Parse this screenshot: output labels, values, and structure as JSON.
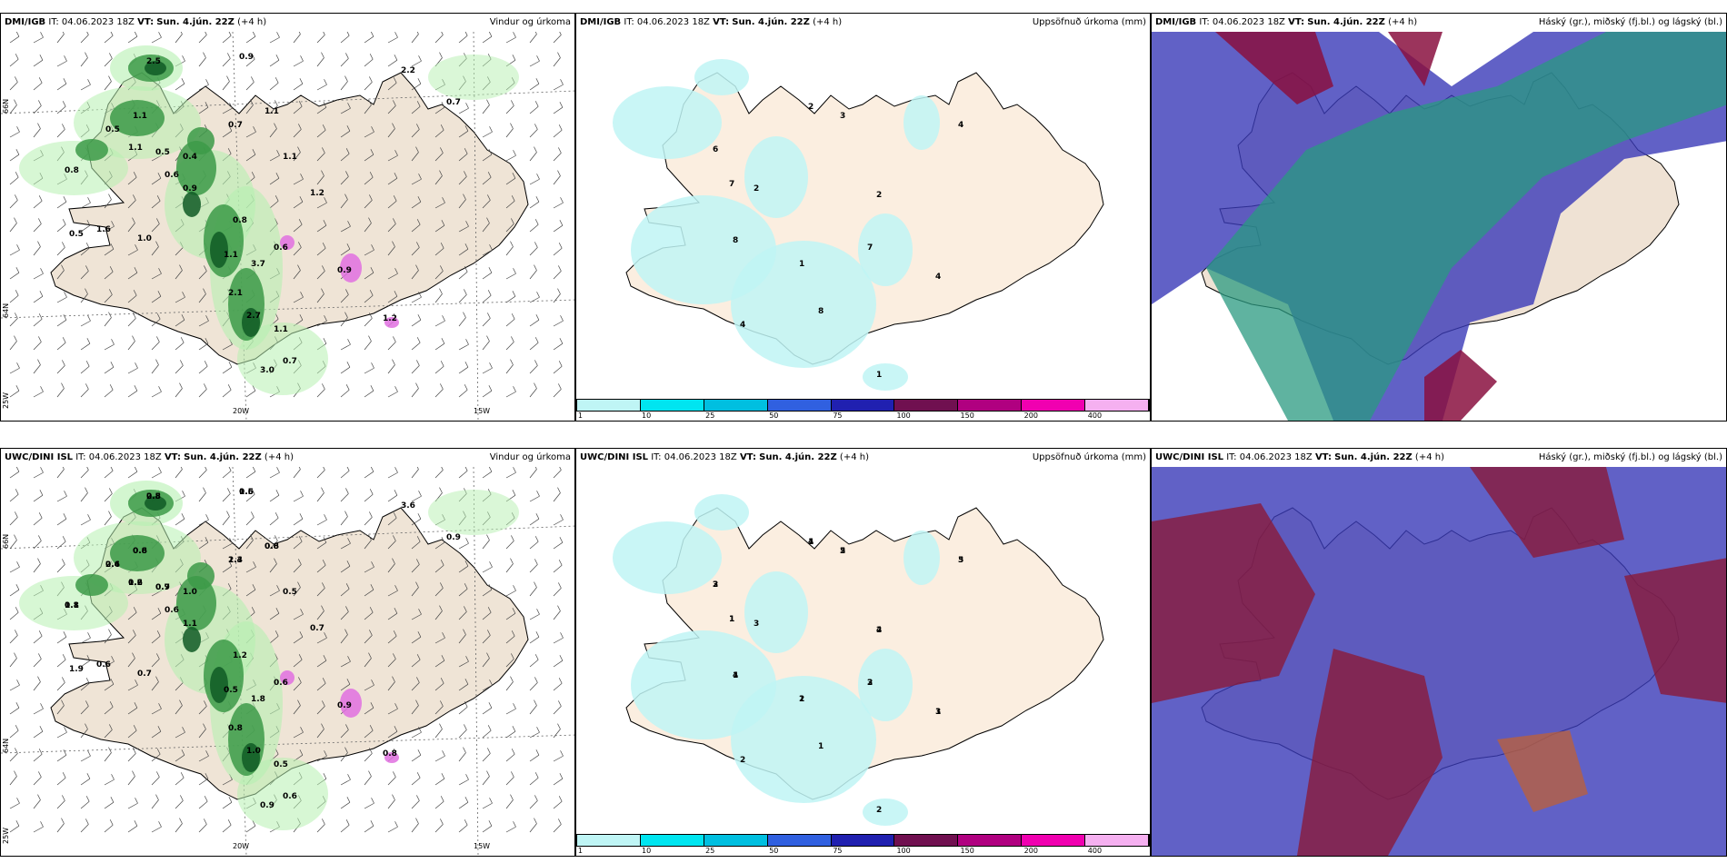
{
  "panels": [
    {
      "model": "DMI/IGB",
      "it_label": "IT:",
      "it_value": "04.06.2023 18Z",
      "vt_label": "VT:",
      "vt_value": "Sun. 4.jún. 22Z",
      "offset": "(+4 h)",
      "title": "Vindur og úrkoma",
      "type": "wind"
    },
    {
      "model": "DMI/IGB",
      "it_label": "IT:",
      "it_value": "04.06.2023 18Z",
      "vt_label": "VT:",
      "vt_value": "Sun. 4.jún. 22Z",
      "offset": "(+4 h)",
      "title": "Uppsöfnuð úrkoma (mm)",
      "type": "accum"
    },
    {
      "model": "DMI/IGB",
      "it_label": "IT:",
      "it_value": "04.06.2023 18Z",
      "vt_label": "VT:",
      "vt_value": "Sun. 4.jún. 22Z",
      "offset": "(+4 h)",
      "title": "Háský (gr.), miðský (fj.bl.) og lágský (bl.)",
      "type": "cloud"
    },
    {
      "model": "UWC/DINI ISL",
      "it_label": "IT:",
      "it_value": "04.06.2023 18Z",
      "vt_label": "VT:",
      "vt_value": "Sun. 4.jún. 22Z",
      "offset": "(+4 h)",
      "title": "Vindur og úrkoma",
      "type": "wind"
    },
    {
      "model": "UWC/DINI ISL",
      "it_label": "IT:",
      "it_value": "04.06.2023 18Z",
      "vt_label": "VT:",
      "vt_value": "Sun. 4.jún. 22Z",
      "offset": "(+4 h)",
      "title": "Uppsöfnuð úrkoma (mm)",
      "type": "accum"
    },
    {
      "model": "UWC/DINI ISL",
      "it_label": "IT:",
      "it_value": "04.06.2023 18Z",
      "vt_label": "VT:",
      "vt_value": "Sun. 4.jún. 22Z",
      "offset": "(+4 h)",
      "title": "Háský (gr.), miðský (fj.bl.) og lágský (bl.)",
      "type": "cloud"
    }
  ],
  "axis_labels": {
    "lat66": "66N",
    "lat64": "64N",
    "lon20": "20W",
    "lon15": "15W",
    "lat25": "25W"
  },
  "colorbar": {
    "ticks": [
      "1",
      "10",
      "25",
      "50",
      "75",
      "100",
      "150",
      "200",
      "400"
    ],
    "colors": [
      "#bff5f5",
      "#00e5f0",
      "#00bfe0",
      "#3060e0",
      "#2020b0",
      "#701050",
      "#b00080",
      "#f000b0",
      "#f5b0f0"
    ]
  },
  "wind_values_top": [
    "2.5",
    "0.9",
    "0.5",
    "1.1",
    "0.7",
    "1.1",
    "1.1",
    "0.5",
    "0.8",
    "0.6",
    "1.1",
    "0.7",
    "0.9",
    "0.8",
    "1.2",
    "0.5",
    "1.6",
    "1.0",
    "1.1",
    "0.6",
    "0.9",
    "2.7",
    "1.2",
    "3.0",
    "0.7",
    "2.1",
    "1.1",
    "3.7",
    "0.4",
    "2.2"
  ],
  "wind_values_bottom": [
    "0.8",
    "1.5",
    "2.4",
    "0.8",
    "2.3",
    "0.8",
    "0.6",
    "0.9",
    "0.8",
    "0.6",
    "0.5",
    "0.9",
    "1.1",
    "1.2",
    "0.7",
    "1.9",
    "0.6",
    "0.7",
    "0.5",
    "0.6",
    "0.9",
    "1.0",
    "0.8",
    "0.9",
    "0.6",
    "0.8",
    "0.5",
    "1.8",
    "1.0",
    "3.6",
    "2.5",
    "0.6",
    "0.6",
    "0.6",
    "1.4",
    "0.6",
    "1.2",
    "0.7",
    "1.1"
  ],
  "accum_values_top": [
    "2",
    "3",
    "4",
    "6",
    "7",
    "2",
    "8",
    "7",
    "1",
    "4",
    "8",
    "4",
    "2",
    "1"
  ],
  "accum_values_bottom": [
    "1",
    "2",
    "3",
    "2",
    "1",
    "4",
    "4",
    "3",
    "2",
    "3",
    "1",
    "2",
    "3",
    "2",
    "4",
    "5",
    "5",
    "3",
    "1",
    "2",
    "1",
    "2",
    "1",
    "1"
  ]
}
